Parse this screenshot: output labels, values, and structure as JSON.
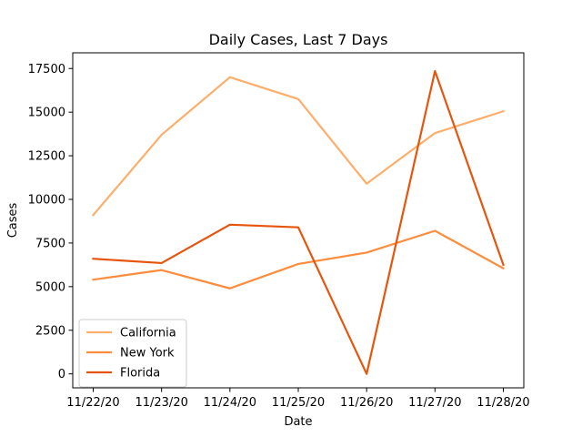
{
  "chart_data": {
    "type": "line",
    "title": "Daily Cases, Last 7 Days",
    "xlabel": "Date",
    "ylabel": "Cases",
    "categories": [
      "11/22/20",
      "11/23/20",
      "11/24/20",
      "11/25/20",
      "11/26/20",
      "11/27/20",
      "11/28/20"
    ],
    "ylim": [
      -800,
      18400
    ],
    "yticks": [
      0,
      2500,
      5000,
      7500,
      10000,
      12500,
      15000,
      17500
    ],
    "grid": false,
    "legend_position": "lower-left",
    "series": [
      {
        "name": "California",
        "color": "#fdae6b",
        "values": [
          9100,
          13700,
          17000,
          15750,
          10900,
          13800,
          15050
        ]
      },
      {
        "name": "New York",
        "color": "#fd8d3c",
        "values": [
          5400,
          5950,
          4900,
          6300,
          6950,
          8200,
          6050
        ]
      },
      {
        "name": "Florida",
        "color": "#e6550d",
        "values": [
          6600,
          6350,
          8550,
          8400,
          0,
          17350,
          6250
        ]
      }
    ]
  }
}
